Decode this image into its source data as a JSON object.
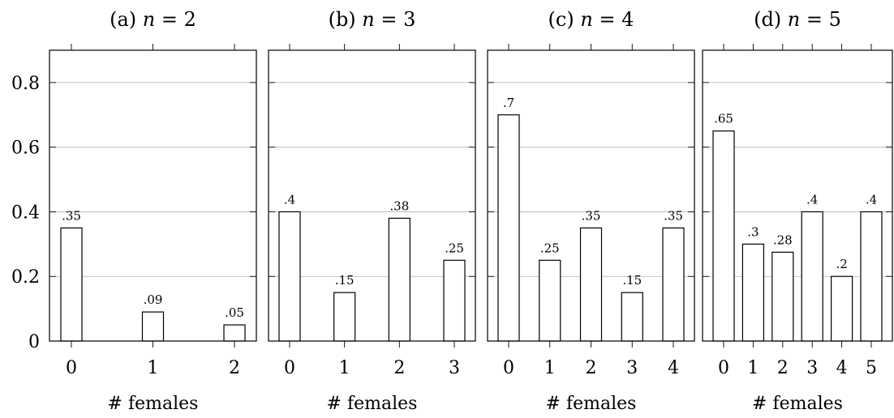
{
  "chart_data": [
    {
      "type": "bar",
      "title": {
        "prefix": "(a) ",
        "variable": "n",
        "relation": " = 2"
      },
      "xlabel": "# females",
      "ylabel": "",
      "ylim": [
        0,
        0.9
      ],
      "categories": [
        "0",
        "1",
        "2"
      ],
      "values": [
        0.35,
        0.09,
        0.05
      ],
      "data_labels": [
        ".35",
        ".09",
        ".05"
      ],
      "grid": true
    },
    {
      "type": "bar",
      "title": {
        "prefix": "(b) ",
        "variable": "n",
        "relation": " = 3"
      },
      "xlabel": "# females",
      "ylabel": "",
      "ylim": [
        0,
        0.9
      ],
      "categories": [
        "0",
        "1",
        "2",
        "3"
      ],
      "values": [
        0.4,
        0.15,
        0.38,
        0.25
      ],
      "data_labels": [
        ".4",
        ".15",
        ".38",
        ".25"
      ],
      "grid": true
    },
    {
      "type": "bar",
      "title": {
        "prefix": "(c) ",
        "variable": "n",
        "relation": " = 4"
      },
      "xlabel": "# females",
      "ylabel": "",
      "ylim": [
        0,
        0.9
      ],
      "categories": [
        "0",
        "1",
        "2",
        "3",
        "4"
      ],
      "values": [
        0.7,
        0.25,
        0.35,
        0.15,
        0.35
      ],
      "data_labels": [
        ".7",
        ".25",
        ".35",
        ".15",
        ".35"
      ],
      "grid": true
    },
    {
      "type": "bar",
      "title": {
        "prefix": "(d) ",
        "variable": "n",
        "relation": " = 5"
      },
      "xlabel": "# females",
      "ylabel": "",
      "ylim": [
        0,
        0.9
      ],
      "categories": [
        "0",
        "1",
        "2",
        "3",
        "4",
        "5"
      ],
      "values": [
        0.65,
        0.3,
        0.275,
        0.4,
        0.2,
        0.4
      ],
      "data_labels": [
        ".65",
        ".3",
        ".28",
        ".4",
        ".2",
        ".4"
      ],
      "grid": true
    }
  ],
  "y_axis": {
    "ticks": [
      0,
      0.2,
      0.4,
      0.6,
      0.8
    ],
    "tick_labels": [
      "0",
      "0.2",
      "0.4",
      "0.6",
      "0.8"
    ]
  }
}
